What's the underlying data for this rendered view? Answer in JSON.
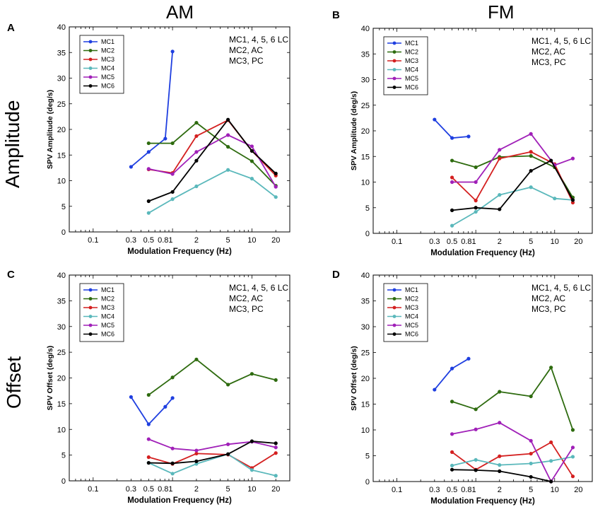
{
  "figure": {
    "column_titles": [
      "AM",
      "FM"
    ],
    "row_titles": [
      "Amplitude",
      "Offset"
    ],
    "panel_letters": [
      "A",
      "B",
      "C",
      "D"
    ]
  },
  "colors": {
    "MC1": "#1f3fe0",
    "MC2": "#2e6b0f",
    "MC3": "#d42020",
    "MC4": "#5ab8bb",
    "MC5": "#a020b8",
    "MC6": "#000000"
  },
  "chart_data": [
    {
      "id": "A",
      "type": "line",
      "xscale": "log",
      "xlabel": "Modulation Frequency (Hz)",
      "ylabel": "SPV Amplitude (deg/s)",
      "xlim": [
        0.05,
        30
      ],
      "ylim": [
        0,
        40
      ],
      "xticks": [
        0.1,
        0.3,
        0.5,
        0.81,
        2,
        5,
        10,
        20
      ],
      "xticklabels": [
        "0.1",
        "0.3",
        "0.5",
        "0.81",
        "2",
        "5",
        "10",
        "20"
      ],
      "yticks": [
        0,
        5,
        10,
        15,
        20,
        25,
        30,
        35,
        40
      ],
      "annotation": [
        "MC1, 4, 5, 6  LC",
        "MC2, AC",
        "MC3, PC"
      ],
      "legend": [
        "MC1",
        "MC2",
        "MC3",
        "MC4",
        "MC5",
        "MC6"
      ],
      "series": [
        {
          "name": "MC1",
          "x": [
            0.3,
            0.5,
            0.81,
            1.0
          ],
          "y": [
            12.7,
            15.6,
            18.2,
            35.2
          ]
        },
        {
          "name": "MC2",
          "x": [
            0.5,
            1.0,
            2,
            5,
            10,
            20
          ],
          "y": [
            17.3,
            17.3,
            21.3,
            16.6,
            13.8,
            9.0
          ]
        },
        {
          "name": "MC3",
          "x": [
            0.5,
            1.0,
            2,
            5,
            10,
            20
          ],
          "y": [
            12.2,
            11.5,
            18.7,
            21.8,
            15.8,
            11.0
          ]
        },
        {
          "name": "MC4",
          "x": [
            0.5,
            1.0,
            2,
            5,
            10,
            20
          ],
          "y": [
            3.7,
            6.4,
            8.9,
            12.1,
            10.4,
            6.8
          ]
        },
        {
          "name": "MC5",
          "x": [
            0.5,
            1.0,
            2,
            5,
            10,
            20
          ],
          "y": [
            12.3,
            11.3,
            15.6,
            18.9,
            16.7,
            8.8
          ]
        },
        {
          "name": "MC6",
          "x": [
            0.5,
            1.0,
            2,
            5,
            10,
            20
          ],
          "y": [
            6.0,
            7.8,
            13.9,
            21.9,
            15.8,
            11.4
          ]
        }
      ]
    },
    {
      "id": "B",
      "type": "line",
      "xscale": "log",
      "xlabel": "Modulation Frequency (Hz)",
      "ylabel": "SPV Amplitude (deg/s)",
      "xlim": [
        0.05,
        30
      ],
      "ylim": [
        0,
        40
      ],
      "xticks": [
        0.1,
        0.3,
        0.5,
        0.81,
        2,
        5,
        10,
        20
      ],
      "xticklabels": [
        "0.1",
        "0.3",
        "0.5",
        "0.81",
        "2",
        "5",
        "10",
        "20"
      ],
      "yticks": [
        0,
        5,
        10,
        15,
        20,
        25,
        30,
        35,
        40
      ],
      "annotation": [
        "MC1, 4, 5, 6  LC",
        "MC2, AC",
        "MC3, PC"
      ],
      "legend": [
        "MC1",
        "MC2",
        "MC3",
        "MC4",
        "MC5",
        "MC6"
      ],
      "series": [
        {
          "name": "MC1",
          "x": [
            0.3,
            0.5,
            0.81
          ],
          "y": [
            22.2,
            18.6,
            18.9
          ]
        },
        {
          "name": "MC2",
          "x": [
            0.5,
            1.0,
            2,
            5,
            10,
            17
          ],
          "y": [
            14.2,
            12.9,
            14.9,
            15.1,
            12.9,
            7.0
          ]
        },
        {
          "name": "MC3",
          "x": [
            0.5,
            1.0,
            2,
            5,
            10,
            17
          ],
          "y": [
            10.9,
            6.4,
            14.6,
            15.9,
            13.5,
            6.0
          ]
        },
        {
          "name": "MC4",
          "x": [
            0.5,
            1.0,
            2,
            5,
            10,
            17
          ],
          "y": [
            1.5,
            4.2,
            7.5,
            9.0,
            6.8,
            6.5
          ]
        },
        {
          "name": "MC5",
          "x": [
            0.5,
            1.0,
            2,
            5,
            10,
            17
          ],
          "y": [
            10.0,
            10.0,
            16.3,
            19.4,
            13.3,
            14.6
          ]
        },
        {
          "name": "MC6",
          "x": [
            0.5,
            1.0,
            2,
            5,
            9,
            17
          ],
          "y": [
            4.5,
            5.0,
            4.7,
            12.2,
            14.2,
            6.5
          ]
        }
      ]
    },
    {
      "id": "C",
      "type": "line",
      "xscale": "log",
      "xlabel": "Modulation Frequency (Hz)",
      "ylabel": "SPV Offset (deg/s)",
      "xlim": [
        0.05,
        30
      ],
      "ylim": [
        0,
        40
      ],
      "xticks": [
        0.1,
        0.3,
        0.5,
        0.81,
        2,
        5,
        10,
        20
      ],
      "xticklabels": [
        "0.1",
        "0.3",
        "0.5",
        "0.81",
        "2",
        "5",
        "10",
        "20"
      ],
      "yticks": [
        0,
        5,
        10,
        15,
        20,
        25,
        30,
        35,
        40
      ],
      "annotation": [
        "MC1, 4, 5, 6  LC",
        "MC2, AC",
        "MC3, PC"
      ],
      "legend": [
        "MC1",
        "MC2",
        "MC3",
        "MC4",
        "MC5",
        "MC6"
      ],
      "series": [
        {
          "name": "MC1",
          "x": [
            0.3,
            0.5,
            0.81,
            1.0
          ],
          "y": [
            16.3,
            11.0,
            14.4,
            16.1
          ]
        },
        {
          "name": "MC2",
          "x": [
            0.5,
            1.0,
            2,
            5,
            10,
            20
          ],
          "y": [
            16.7,
            20.1,
            23.6,
            18.7,
            20.8,
            19.6
          ]
        },
        {
          "name": "MC3",
          "x": [
            0.5,
            1.0,
            2,
            5,
            10,
            20
          ],
          "y": [
            4.6,
            3.3,
            5.3,
            5.1,
            2.5,
            5.4
          ]
        },
        {
          "name": "MC4",
          "x": [
            0.5,
            1.0,
            2,
            5,
            10,
            20
          ],
          "y": [
            3.5,
            1.4,
            3.3,
            5.2,
            2.1,
            1.0
          ]
        },
        {
          "name": "MC5",
          "x": [
            0.5,
            1.0,
            2,
            5,
            10,
            20
          ],
          "y": [
            8.1,
            6.3,
            5.9,
            7.1,
            7.6,
            6.5
          ]
        },
        {
          "name": "MC6",
          "x": [
            0.5,
            1.0,
            2,
            5,
            10,
            20
          ],
          "y": [
            3.5,
            3.4,
            3.8,
            5.2,
            7.7,
            7.3
          ]
        }
      ]
    },
    {
      "id": "D",
      "type": "line",
      "xscale": "log",
      "xlabel": "Modulation Frequency (Hz)",
      "ylabel": "SPV Offset (deg/s)",
      "xlim": [
        0.05,
        30
      ],
      "ylim": [
        0,
        40
      ],
      "xticks": [
        0.1,
        0.3,
        0.5,
        0.81,
        2,
        5,
        10,
        20
      ],
      "xticklabels": [
        "0.1",
        "0.3",
        "0.5",
        "0.81",
        "2",
        "5",
        "10",
        "20"
      ],
      "yticks": [
        0,
        5,
        10,
        15,
        20,
        25,
        30,
        35,
        40
      ],
      "annotation": [
        "MC1, 4, 5, 6  LC",
        "MC2, AC",
        "MC3, PC"
      ],
      "legend": [
        "MC1",
        "MC2",
        "MC3",
        "MC4",
        "MC5",
        "MC6"
      ],
      "series": [
        {
          "name": "MC1",
          "x": [
            0.3,
            0.5,
            0.81
          ],
          "y": [
            17.8,
            21.9,
            23.8
          ]
        },
        {
          "name": "MC2",
          "x": [
            0.5,
            1.0,
            2,
            5,
            9,
            17
          ],
          "y": [
            15.5,
            14.0,
            17.4,
            16.5,
            22.1,
            10.0
          ]
        },
        {
          "name": "MC3",
          "x": [
            0.5,
            1.0,
            2,
            5,
            9,
            17
          ],
          "y": [
            5.7,
            2.3,
            4.9,
            5.4,
            7.6,
            1.0
          ]
        },
        {
          "name": "MC4",
          "x": [
            0.5,
            1.0,
            2,
            5,
            9,
            17
          ],
          "y": [
            3.1,
            4.2,
            3.2,
            3.5,
            4.0,
            4.8
          ]
        },
        {
          "name": "MC5",
          "x": [
            0.5,
            1.0,
            2,
            5,
            9,
            17
          ],
          "y": [
            9.2,
            10.1,
            11.4,
            7.9,
            0.0,
            6.6
          ]
        },
        {
          "name": "MC6",
          "x": [
            0.5,
            1.0,
            2,
            5,
            9
          ],
          "y": [
            2.3,
            2.2,
            2.0,
            0.9,
            0.0
          ]
        }
      ]
    }
  ]
}
